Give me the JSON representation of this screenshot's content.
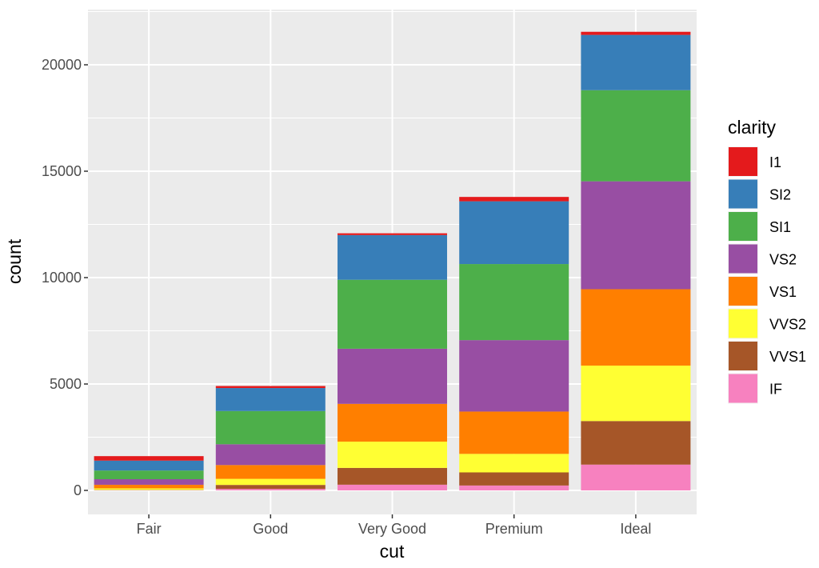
{
  "chart_data": {
    "type": "bar",
    "stacked": true,
    "xlabel": "cut",
    "ylabel": "count",
    "categories": [
      "Fair",
      "Good",
      "Very Good",
      "Premium",
      "Ideal"
    ],
    "ylim": [
      0,
      22000
    ],
    "yticks": [
      0,
      5000,
      10000,
      15000,
      20000
    ],
    "grid": true,
    "legend": {
      "title": "clarity",
      "position": "right"
    },
    "series": [
      {
        "name": "IF",
        "color": "#F781BF",
        "values": [
          9,
          71,
          268,
          230,
          1212
        ]
      },
      {
        "name": "VVS1",
        "color": "#A65628",
        "values": [
          17,
          186,
          789,
          616,
          2047
        ]
      },
      {
        "name": "VVS2",
        "color": "#FFFF33",
        "values": [
          69,
          286,
          1235,
          870,
          2606
        ]
      },
      {
        "name": "VS1",
        "color": "#FF7F00",
        "values": [
          170,
          648,
          1775,
          1989,
          3589
        ]
      },
      {
        "name": "VS2",
        "color": "#984EA3",
        "values": [
          261,
          978,
          2591,
          3357,
          5071
        ]
      },
      {
        "name": "SI1",
        "color": "#4DAF4A",
        "values": [
          408,
          1560,
          3240,
          3575,
          4282
        ]
      },
      {
        "name": "SI2",
        "color": "#377EB8",
        "values": [
          466,
          1081,
          2100,
          2949,
          2598
        ]
      },
      {
        "name": "I1",
        "color": "#E41A1C",
        "values": [
          210,
          96,
          84,
          205,
          146
        ]
      }
    ],
    "legend_order": [
      "I1",
      "SI2",
      "SI1",
      "VS2",
      "VS1",
      "VVS2",
      "VVS1",
      "IF"
    ]
  }
}
